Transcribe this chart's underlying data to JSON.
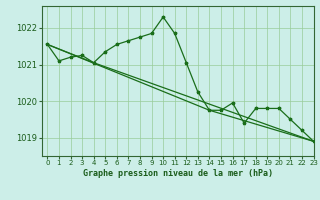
{
  "title": "Graphe pression niveau de la mer (hPa)",
  "background_color": "#cceee8",
  "line_color": "#1a6e1a",
  "grid_color": "#99cc99",
  "xlim": [
    -0.5,
    23
  ],
  "ylim": [
    1018.5,
    1022.6
  ],
  "yticks": [
    1019,
    1020,
    1021,
    1022
  ],
  "xticks": [
    0,
    1,
    2,
    3,
    4,
    5,
    6,
    7,
    8,
    9,
    10,
    11,
    12,
    13,
    14,
    15,
    16,
    17,
    18,
    19,
    20,
    21,
    22,
    23
  ],
  "series1_x": [
    0,
    1,
    2,
    3,
    4,
    5,
    6,
    7,
    8,
    9,
    10,
    11,
    12,
    13,
    14,
    15,
    16,
    17,
    18,
    19,
    20,
    21,
    22,
    23
  ],
  "series1_y": [
    1021.55,
    1021.1,
    1021.2,
    1021.25,
    1021.05,
    1021.35,
    1021.55,
    1021.65,
    1021.75,
    1021.85,
    1022.3,
    1021.85,
    1021.05,
    1020.25,
    1019.75,
    1019.75,
    1019.95,
    1019.4,
    1019.8,
    1019.8,
    1019.8,
    1019.5,
    1019.2,
    1018.9
  ],
  "series2_x": [
    0,
    4,
    23
  ],
  "series2_y": [
    1021.55,
    1021.05,
    1018.9
  ],
  "series3_x": [
    0,
    14,
    23
  ],
  "series3_y": [
    1021.55,
    1019.75,
    1018.9
  ]
}
